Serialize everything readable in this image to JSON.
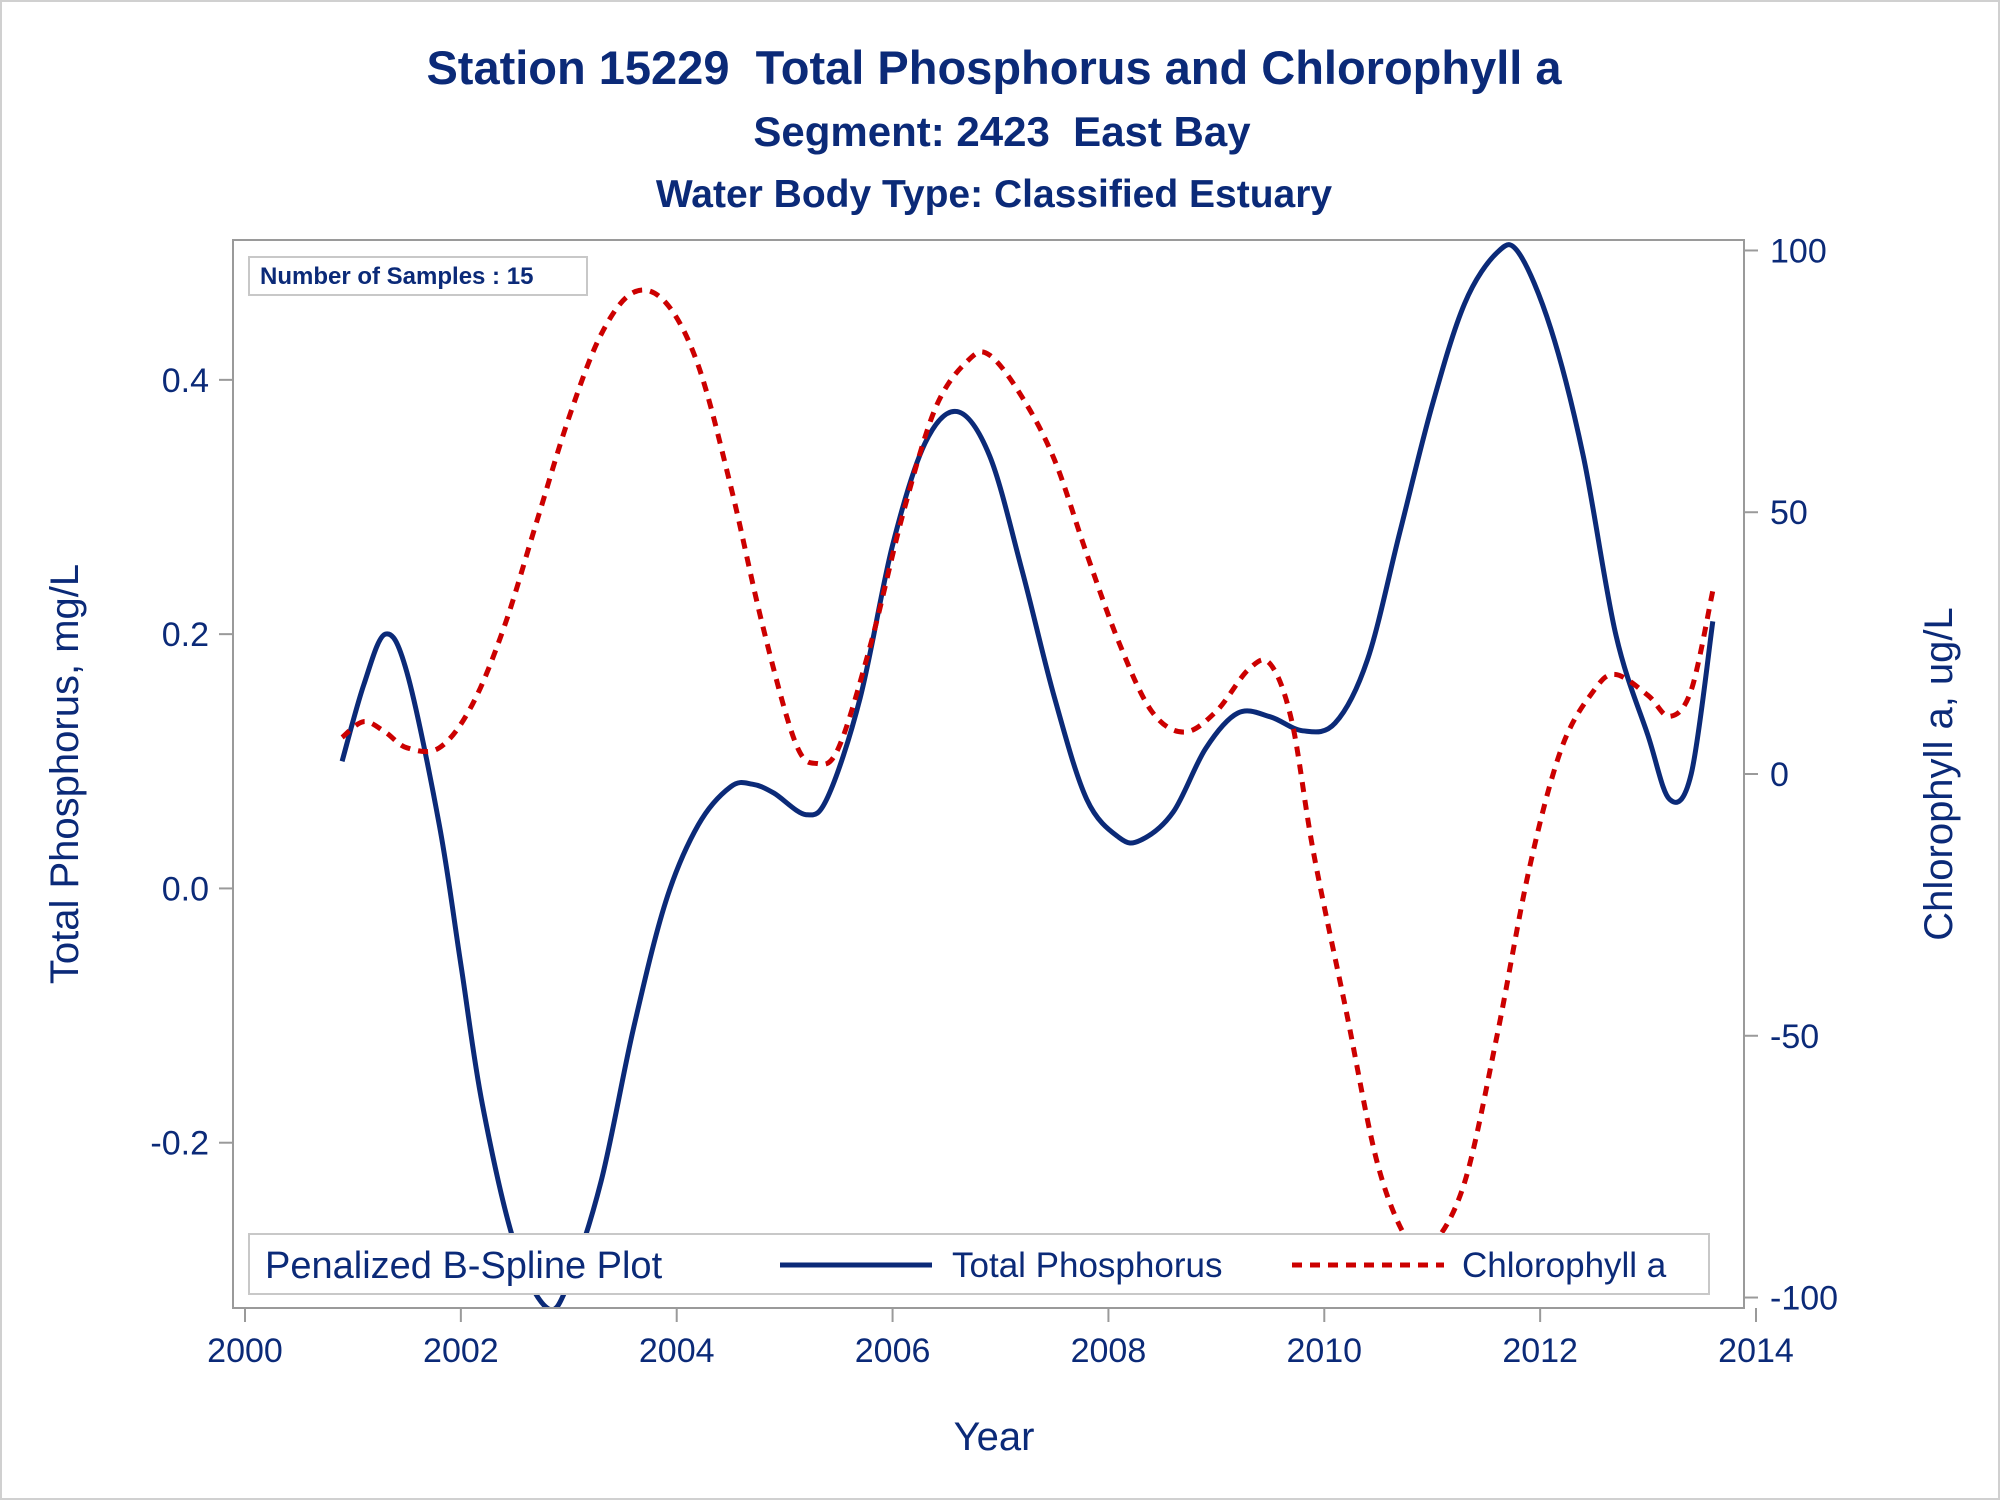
{
  "chart_data": {
    "type": "line",
    "title": "Station 15229  Total Phosphorus and Chlorophyll a",
    "subtitle": "Segment: 2423  East Bay",
    "subtitle2": "Water Body Type: Classified Estuary",
    "xlabel": "Year",
    "ylabel_left": "Total Phosphorus, mg/L",
    "ylabel_right": "Chlorophyll a, ug/L",
    "xlim": [
      2000,
      2014
    ],
    "ylim_left": [
      -0.33,
      0.51
    ],
    "ylim_right": [
      -102,
      102
    ],
    "x_ticks": [
      "2000",
      "2002",
      "2004",
      "2006",
      "2008",
      "2010",
      "2012",
      "2014"
    ],
    "y_ticks_left": [
      "-0.2",
      "0.0",
      "0.2",
      "0.4"
    ],
    "y_ticks_right": [
      "-100",
      "-50",
      "0",
      "50",
      "100"
    ],
    "grid": false,
    "inset_label": "Number of Samples : 15",
    "legend": {
      "title": "Penalized B-Spline Plot",
      "position": "bottom",
      "entries": [
        "Total Phosphorus",
        "Chlorophyll a"
      ]
    },
    "series": [
      {
        "name": "Total Phosphorus",
        "axis": "left",
        "color": "#0b2a78",
        "style": "solid",
        "points": [
          [
            2000.9,
            0.1
          ],
          [
            2001.1,
            0.16
          ],
          [
            2001.3,
            0.2
          ],
          [
            2001.5,
            0.17
          ],
          [
            2001.8,
            0.05
          ],
          [
            2002.0,
            -0.06
          ],
          [
            2002.2,
            -0.17
          ],
          [
            2002.5,
            -0.28
          ],
          [
            2002.8,
            -0.33
          ],
          [
            2003.0,
            -0.31
          ],
          [
            2003.3,
            -0.23
          ],
          [
            2003.6,
            -0.11
          ],
          [
            2003.9,
            -0.01
          ],
          [
            2004.2,
            0.05
          ],
          [
            2004.5,
            0.08
          ],
          [
            2004.7,
            0.082
          ],
          [
            2004.9,
            0.075
          ],
          [
            2005.2,
            0.058
          ],
          [
            2005.4,
            0.072
          ],
          [
            2005.7,
            0.15
          ],
          [
            2006.0,
            0.27
          ],
          [
            2006.3,
            0.35
          ],
          [
            2006.6,
            0.375
          ],
          [
            2006.9,
            0.34
          ],
          [
            2007.2,
            0.25
          ],
          [
            2007.5,
            0.15
          ],
          [
            2007.8,
            0.07
          ],
          [
            2008.1,
            0.04
          ],
          [
            2008.3,
            0.038
          ],
          [
            2008.6,
            0.06
          ],
          [
            2008.9,
            0.11
          ],
          [
            2009.2,
            0.138
          ],
          [
            2009.5,
            0.135
          ],
          [
            2009.8,
            0.124
          ],
          [
            2010.1,
            0.13
          ],
          [
            2010.4,
            0.18
          ],
          [
            2010.7,
            0.28
          ],
          [
            2011.0,
            0.38
          ],
          [
            2011.3,
            0.46
          ],
          [
            2011.6,
            0.5
          ],
          [
            2011.8,
            0.5
          ],
          [
            2012.1,
            0.44
          ],
          [
            2012.4,
            0.34
          ],
          [
            2012.7,
            0.2
          ],
          [
            2013.0,
            0.12
          ],
          [
            2013.2,
            0.07
          ],
          [
            2013.4,
            0.09
          ],
          [
            2013.6,
            0.21
          ]
        ]
      },
      {
        "name": "Chlorophyll a",
        "axis": "right",
        "color": "#cc0000",
        "style": "dashed",
        "points": [
          [
            2000.9,
            7
          ],
          [
            2001.1,
            10
          ],
          [
            2001.3,
            8
          ],
          [
            2001.5,
            5
          ],
          [
            2001.8,
            5
          ],
          [
            2002.1,
            13
          ],
          [
            2002.4,
            28
          ],
          [
            2002.7,
            48
          ],
          [
            2003.0,
            68
          ],
          [
            2003.3,
            84
          ],
          [
            2003.6,
            92
          ],
          [
            2003.9,
            90
          ],
          [
            2004.2,
            78
          ],
          [
            2004.5,
            55
          ],
          [
            2004.8,
            28
          ],
          [
            2005.1,
            6
          ],
          [
            2005.3,
            2
          ],
          [
            2005.5,
            5
          ],
          [
            2005.8,
            25
          ],
          [
            2006.1,
            50
          ],
          [
            2006.4,
            70
          ],
          [
            2006.7,
            79
          ],
          [
            2006.9,
            80
          ],
          [
            2007.2,
            72
          ],
          [
            2007.5,
            60
          ],
          [
            2007.8,
            42
          ],
          [
            2008.1,
            25
          ],
          [
            2008.4,
            12
          ],
          [
            2008.7,
            8
          ],
          [
            2009.0,
            12
          ],
          [
            2009.3,
            20
          ],
          [
            2009.5,
            21
          ],
          [
            2009.7,
            10
          ],
          [
            2009.9,
            -15
          ],
          [
            2010.2,
            -45
          ],
          [
            2010.5,
            -75
          ],
          [
            2010.8,
            -90
          ],
          [
            2011.0,
            -90
          ],
          [
            2011.3,
            -78
          ],
          [
            2011.6,
            -50
          ],
          [
            2011.9,
            -18
          ],
          [
            2012.2,
            5
          ],
          [
            2012.5,
            16
          ],
          [
            2012.7,
            19
          ],
          [
            2013.0,
            15
          ],
          [
            2013.2,
            11
          ],
          [
            2013.4,
            16
          ],
          [
            2013.6,
            35
          ]
        ]
      }
    ]
  }
}
